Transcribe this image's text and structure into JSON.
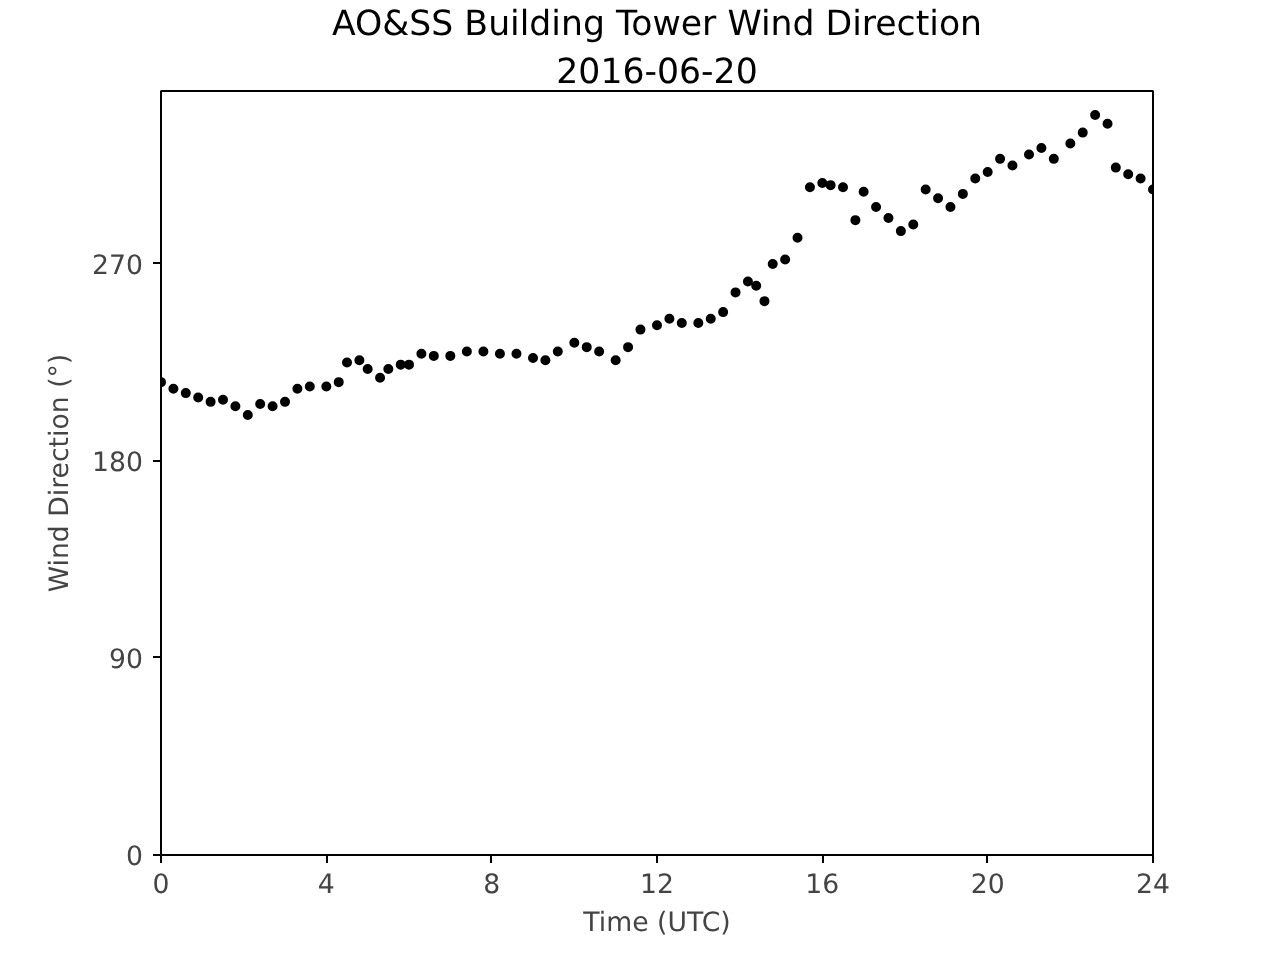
{
  "chart_data": {
    "type": "scatter",
    "title": "AO&SS Building Tower Wind Direction",
    "subtitle": "2016-06-20",
    "xlabel": "Time (UTC)",
    "ylabel": "Wind Direction (°)",
    "marker": "circle",
    "grid": false,
    "xlim": [
      0,
      24
    ],
    "xticks": [
      0,
      4,
      8,
      12,
      16,
      20,
      24
    ],
    "ylim": [
      0,
      349
    ],
    "yticks": [
      0,
      90,
      180,
      270
    ],
    "series": [
      {
        "color": "#000000",
        "x": [
          0,
          0.3,
          0.6,
          0.9,
          1.2,
          1.5,
          1.8,
          2.1,
          2.4,
          2.7,
          3.0,
          3.3,
          3.6,
          4.0,
          4.3,
          4.5,
          4.8,
          5.0,
          5.3,
          5.5,
          5.8,
          6.0,
          6.3,
          6.6,
          7.0,
          7.4,
          7.8,
          8.2,
          8.6,
          9.0,
          9.3,
          9.6,
          10.0,
          10.3,
          10.6,
          11.0,
          11.3,
          11.6,
          12.0,
          12.3,
          12.6,
          13.0,
          13.3,
          13.6,
          13.9,
          14.2,
          14.4,
          14.6,
          14.8,
          15.1,
          15.4,
          15.7,
          16.0,
          16.2,
          16.5,
          16.8,
          17.0,
          17.3,
          17.6,
          17.9,
          18.2,
          18.5,
          18.8,
          19.1,
          19.4,
          19.7,
          20.0,
          20.3,
          20.6,
          21.0,
          21.3,
          21.6,
          22.0,
          22.3,
          22.6,
          22.9,
          23.1,
          23.4,
          23.7,
          24.0
        ],
        "values": [
          216,
          213,
          211,
          209,
          207,
          208,
          205,
          201,
          206,
          205,
          207,
          213,
          214,
          214,
          216,
          225,
          226,
          222,
          218,
          222,
          224,
          224,
          229,
          228,
          228,
          230,
          230,
          229,
          229,
          227,
          226,
          230,
          234,
          232,
          230,
          226,
          232,
          240,
          242,
          245,
          243,
          243,
          245,
          248,
          257,
          262,
          260,
          253,
          270,
          272,
          282,
          305,
          307,
          306,
          305,
          290,
          303,
          296,
          291,
          285,
          288,
          304,
          300,
          296,
          302,
          309,
          312,
          318,
          315,
          320,
          323,
          318,
          325,
          330,
          338,
          334,
          314,
          311,
          309,
          304
        ]
      }
    ]
  }
}
